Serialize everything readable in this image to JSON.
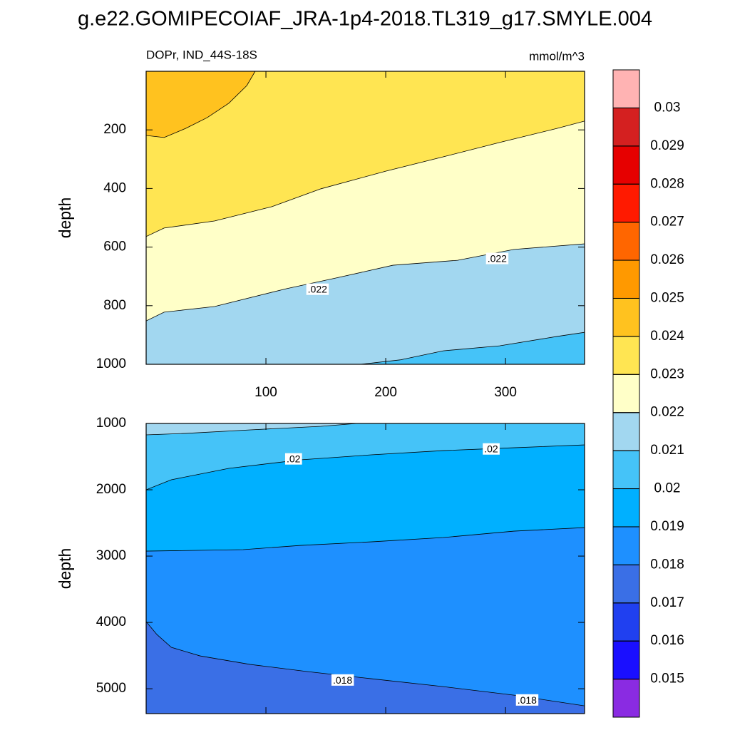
{
  "title": "g.e22.GOMIPECOIAF_JRA-1p4-2018.TL319_g17.SMYLE.004",
  "chart_data": [
    {
      "type": "contour",
      "subtitle": "DOPr, IND_44S-18S",
      "units": "mmol/m^3",
      "ylabel": "depth",
      "xlim": [
        0,
        366
      ],
      "ylim": [
        1000,
        0
      ],
      "xticks": [
        100,
        200,
        300
      ],
      "xticklabels": true,
      "yticks": [
        200,
        400,
        600,
        800,
        1000
      ],
      "contours": [
        {
          "level": 0.021,
          "x": [
            179,
            212,
            248,
            295,
            343,
            366
          ],
          "y": [
            1000,
            985,
            954,
            937,
            905,
            891
          ]
        },
        {
          "level": 0.022,
          "x": [
            0,
            15,
            57,
            117,
            158,
            206,
            260,
            307,
            366
          ],
          "y": [
            852,
            822,
            803,
            742,
            706,
            662,
            645,
            608,
            589
          ]
        },
        {
          "level": 0.023,
          "x": [
            0,
            15,
            57,
            105,
            146,
            200,
            248,
            295,
            343,
            366
          ],
          "y": [
            564,
            535,
            511,
            462,
            401,
            341,
            292,
            243,
            195,
            170
          ]
        },
        {
          "level": 0.024,
          "x": [
            0,
            15,
            33,
            51,
            69,
            84,
            91
          ],
          "y": [
            219,
            226,
            195,
            158,
            109,
            49,
            0
          ]
        }
      ],
      "labels": [
        {
          "text": ".022",
          "x": 143,
          "y": 747
        },
        {
          "text": ".022",
          "x": 293,
          "y": 642
        }
      ]
    },
    {
      "type": "contour",
      "ylabel": "depth",
      "xlim": [
        0,
        366
      ],
      "ylim": [
        5375,
        1000
      ],
      "xticks": [
        100,
        200,
        300
      ],
      "xticklabels": false,
      "yticks": [
        1000,
        2000,
        3000,
        4000,
        5000
      ],
      "contours": [
        {
          "level": 0.018,
          "x": [
            0,
            9,
            21,
            45,
            87,
            135,
            188,
            248,
            307,
            366
          ],
          "y": [
            3989,
            4183,
            4376,
            4505,
            4634,
            4742,
            4849,
            4968,
            5097,
            5258
          ]
        },
        {
          "level": 0.019,
          "x": [
            0,
            81,
            129,
            188,
            248,
            307,
            366
          ],
          "y": [
            2925,
            2903,
            2839,
            2785,
            2720,
            2624,
            2570
          ]
        },
        {
          "level": 0.02,
          "x": [
            0,
            21,
            69,
            129,
            188,
            248,
            307,
            366
          ],
          "y": [
            2000,
            1849,
            1677,
            1548,
            1473,
            1409,
            1366,
            1323
          ]
        },
        {
          "level": 0.021,
          "x": [
            0,
            33,
            87,
            146,
            176
          ],
          "y": [
            1172,
            1150,
            1097,
            1043,
            1000
          ]
        }
      ],
      "labels": [
        {
          "text": ".02",
          "x": 123,
          "y": 1548
        },
        {
          "text": ".02",
          "x": 288,
          "y": 1398
        },
        {
          "text": ".018",
          "x": 164,
          "y": 4882
        },
        {
          "text": ".018",
          "x": 318,
          "y": 5183
        }
      ]
    }
  ],
  "colorbar": {
    "levels": [
      0.015,
      0.016,
      0.017,
      0.018,
      0.019,
      0.02,
      0.021,
      0.022,
      0.023,
      0.024,
      0.025,
      0.026,
      0.027,
      0.028,
      0.029,
      0.03
    ],
    "colors": [
      "#8a2be2",
      "#1a0fff",
      "#2040f0",
      "#3a6fe6",
      "#1e90ff",
      "#00b0ff",
      "#45c3f8",
      "#a2d7f0",
      "#ffffc8",
      "#ffe552",
      "#ffc21f",
      "#ff9900",
      "#ff6600",
      "#ff1a00",
      "#e60000",
      "#d42020",
      "#ffb3b3"
    ]
  }
}
